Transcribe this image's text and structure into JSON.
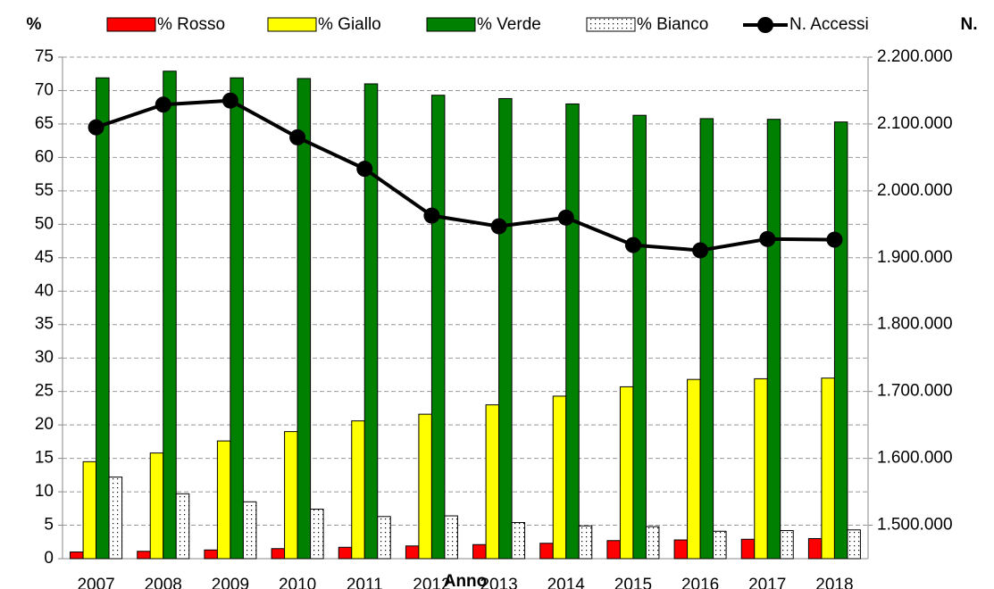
{
  "chart_data": {
    "type": "bar",
    "y_label": "%",
    "y2_label": "N.",
    "x_label": "Anno",
    "categories": [
      "2007",
      "2008",
      "2009",
      "2010",
      "2011",
      "2012",
      "2013",
      "2014",
      "2015",
      "2016",
      "2017",
      "2018"
    ],
    "series": [
      {
        "name": "% Rosso",
        "color": "#ff0000",
        "values": [
          1.0,
          1.1,
          1.3,
          1.5,
          1.7,
          1.9,
          2.1,
          2.3,
          2.7,
          2.8,
          2.9,
          3.0
        ]
      },
      {
        "name": "% Giallo",
        "color": "#ffff00",
        "values": [
          14.5,
          15.8,
          17.6,
          19.0,
          20.6,
          21.6,
          23.0,
          24.3,
          25.7,
          26.8,
          26.9,
          27.0
        ]
      },
      {
        "name": "% Verde",
        "color": "#008000",
        "values": [
          71.9,
          72.9,
          71.9,
          71.8,
          71.0,
          69.3,
          68.8,
          68.0,
          66.3,
          65.8,
          65.7,
          65.3
        ]
      },
      {
        "name": "% Bianco",
        "color": "#ffffff",
        "pattern": "dots",
        "values": [
          12.2,
          9.7,
          8.5,
          7.4,
          6.3,
          6.4,
          5.4,
          4.9,
          4.8,
          4.1,
          4.2,
          4.3
        ]
      },
      {
        "name": "N. Accessi",
        "type": "line",
        "axis": "y2",
        "color": "#000000",
        "values": [
          2095000,
          2129000,
          2135000,
          2080000,
          2033000,
          1963000,
          1947000,
          1960000,
          1919000,
          1911000,
          1928000,
          1927000
        ]
      }
    ],
    "ylim": [
      0,
      75
    ],
    "yticks": [
      0,
      5,
      10,
      15,
      20,
      25,
      30,
      35,
      40,
      45,
      50,
      55,
      60,
      65,
      70,
      75
    ],
    "y2lim": [
      1450000,
      2200000
    ],
    "y2ticks": [
      {
        "value": 1500000,
        "label": "1.500.000"
      },
      {
        "value": 1600000,
        "label": "1.600.000"
      },
      {
        "value": 1700000,
        "label": "1.700.000"
      },
      {
        "value": 1800000,
        "label": "1.800.000"
      },
      {
        "value": 1900000,
        "label": "1.900.000"
      },
      {
        "value": 2000000,
        "label": "2.000.000"
      },
      {
        "value": 2100000,
        "label": "2.100.000"
      },
      {
        "value": 2200000,
        "label": "2.200.000"
      }
    ],
    "grid": true,
    "legend": "top"
  }
}
